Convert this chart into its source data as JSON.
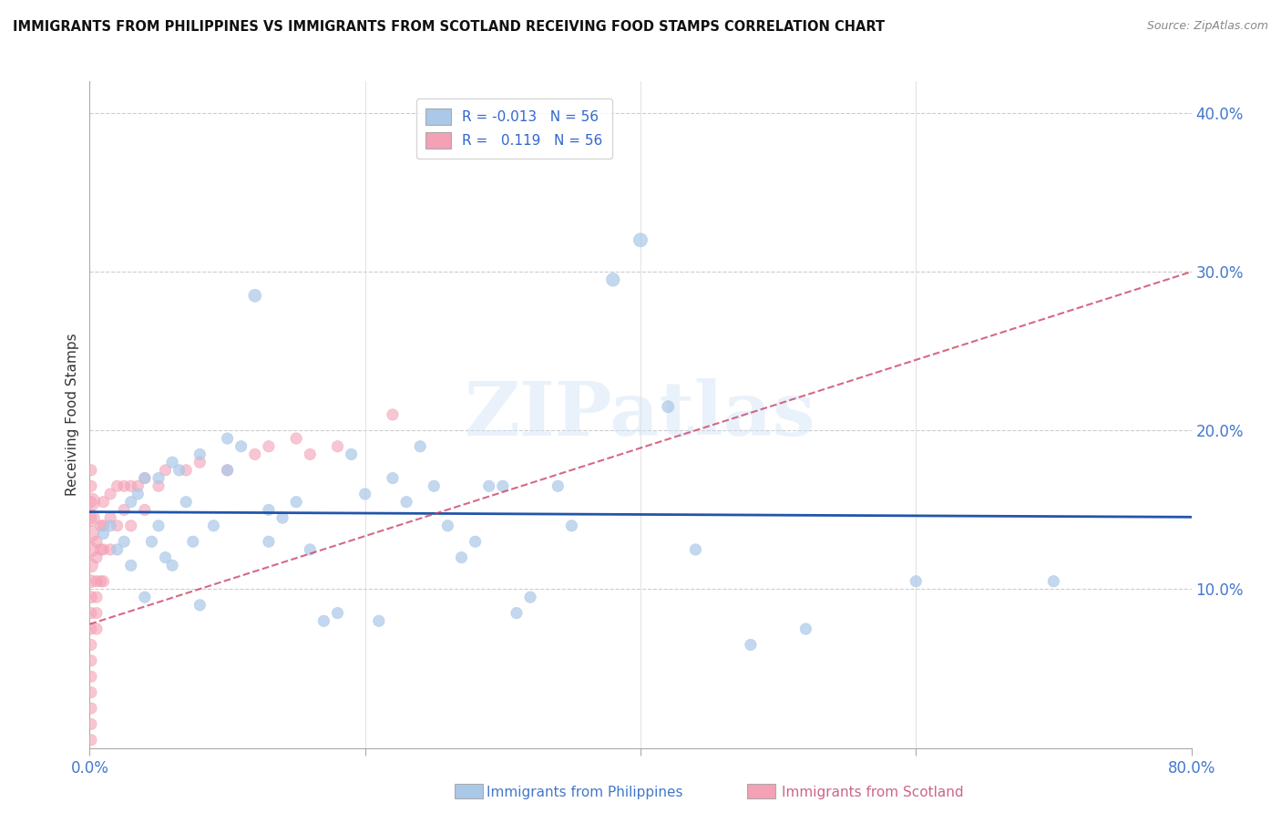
{
  "title": "IMMIGRANTS FROM PHILIPPINES VS IMMIGRANTS FROM SCOTLAND RECEIVING FOOD STAMPS CORRELATION CHART",
  "source": "Source: ZipAtlas.com",
  "xlabel_blue": "Immigrants from Philippines",
  "xlabel_pink": "Immigrants from Scotland",
  "ylabel": "Receiving Food Stamps",
  "xlim": [
    0.0,
    0.8
  ],
  "ylim": [
    0.0,
    0.42
  ],
  "yticks_right": [
    0.1,
    0.2,
    0.3,
    0.4
  ],
  "ytick_labels_right": [
    "10.0%",
    "20.0%",
    "30.0%",
    "40.0%"
  ],
  "blue_color": "#aac8e8",
  "blue_line_color": "#2255aa",
  "pink_color": "#f4a0b5",
  "pink_line_color": "#cc4466",
  "watermark_text": "ZIPatlas",
  "legend_blue_label": "R = -0.013   N = 56",
  "legend_pink_label": "R =   0.119   N = 56",
  "blue_x": [
    0.01,
    0.015,
    0.02,
    0.025,
    0.03,
    0.03,
    0.035,
    0.04,
    0.04,
    0.045,
    0.05,
    0.05,
    0.055,
    0.06,
    0.06,
    0.065,
    0.07,
    0.075,
    0.08,
    0.08,
    0.09,
    0.1,
    0.1,
    0.11,
    0.12,
    0.13,
    0.13,
    0.14,
    0.15,
    0.16,
    0.17,
    0.18,
    0.19,
    0.2,
    0.21,
    0.22,
    0.23,
    0.24,
    0.25,
    0.26,
    0.27,
    0.28,
    0.29,
    0.3,
    0.31,
    0.32,
    0.34,
    0.35,
    0.38,
    0.4,
    0.42,
    0.44,
    0.48,
    0.52,
    0.6,
    0.7
  ],
  "blue_y": [
    0.135,
    0.14,
    0.125,
    0.13,
    0.155,
    0.115,
    0.16,
    0.17,
    0.095,
    0.13,
    0.14,
    0.17,
    0.12,
    0.115,
    0.18,
    0.175,
    0.155,
    0.13,
    0.09,
    0.185,
    0.14,
    0.175,
    0.195,
    0.19,
    0.285,
    0.15,
    0.13,
    0.145,
    0.155,
    0.125,
    0.08,
    0.085,
    0.185,
    0.16,
    0.08,
    0.17,
    0.155,
    0.19,
    0.165,
    0.14,
    0.12,
    0.13,
    0.165,
    0.165,
    0.085,
    0.095,
    0.165,
    0.14,
    0.295,
    0.32,
    0.215,
    0.125,
    0.065,
    0.075,
    0.105,
    0.105
  ],
  "blue_sizes": [
    80,
    80,
    80,
    80,
    80,
    80,
    80,
    80,
    80,
    80,
    80,
    80,
    80,
    80,
    80,
    80,
    80,
    80,
    80,
    80,
    80,
    80,
    80,
    80,
    100,
    80,
    80,
    80,
    80,
    80,
    80,
    80,
    80,
    80,
    80,
    80,
    80,
    80,
    80,
    80,
    80,
    80,
    80,
    80,
    80,
    80,
    80,
    80,
    110,
    120,
    90,
    80,
    80,
    80,
    80,
    80
  ],
  "pink_x": [
    0.001,
    0.001,
    0.001,
    0.001,
    0.001,
    0.001,
    0.001,
    0.001,
    0.001,
    0.001,
    0.001,
    0.001,
    0.001,
    0.001,
    0.001,
    0.001,
    0.001,
    0.001,
    0.001,
    0.001,
    0.005,
    0.005,
    0.005,
    0.005,
    0.005,
    0.005,
    0.008,
    0.008,
    0.008,
    0.01,
    0.01,
    0.01,
    0.01,
    0.015,
    0.015,
    0.015,
    0.02,
    0.02,
    0.025,
    0.025,
    0.03,
    0.03,
    0.035,
    0.04,
    0.04,
    0.05,
    0.055,
    0.07,
    0.08,
    0.1,
    0.12,
    0.13,
    0.15,
    0.16,
    0.18,
    0.22
  ],
  "pink_y": [
    0.155,
    0.145,
    0.135,
    0.125,
    0.115,
    0.105,
    0.095,
    0.085,
    0.075,
    0.065,
    0.055,
    0.045,
    0.035,
    0.025,
    0.015,
    0.005,
    0.165,
    0.155,
    0.145,
    0.175,
    0.13,
    0.12,
    0.105,
    0.095,
    0.085,
    0.075,
    0.14,
    0.125,
    0.105,
    0.155,
    0.14,
    0.125,
    0.105,
    0.16,
    0.145,
    0.125,
    0.165,
    0.14,
    0.165,
    0.15,
    0.165,
    0.14,
    0.165,
    0.17,
    0.15,
    0.165,
    0.175,
    0.175,
    0.18,
    0.175,
    0.185,
    0.19,
    0.195,
    0.185,
    0.19,
    0.21
  ],
  "pink_sizes": [
    200,
    180,
    160,
    140,
    120,
    100,
    90,
    80,
    80,
    80,
    80,
    80,
    80,
    80,
    80,
    80,
    80,
    80,
    80,
    80,
    80,
    80,
    80,
    80,
    80,
    80,
    80,
    80,
    80,
    80,
    80,
    80,
    80,
    80,
    80,
    80,
    80,
    80,
    80,
    80,
    80,
    80,
    80,
    80,
    80,
    80,
    80,
    80,
    80,
    80,
    80,
    80,
    80,
    80,
    80,
    80
  ]
}
